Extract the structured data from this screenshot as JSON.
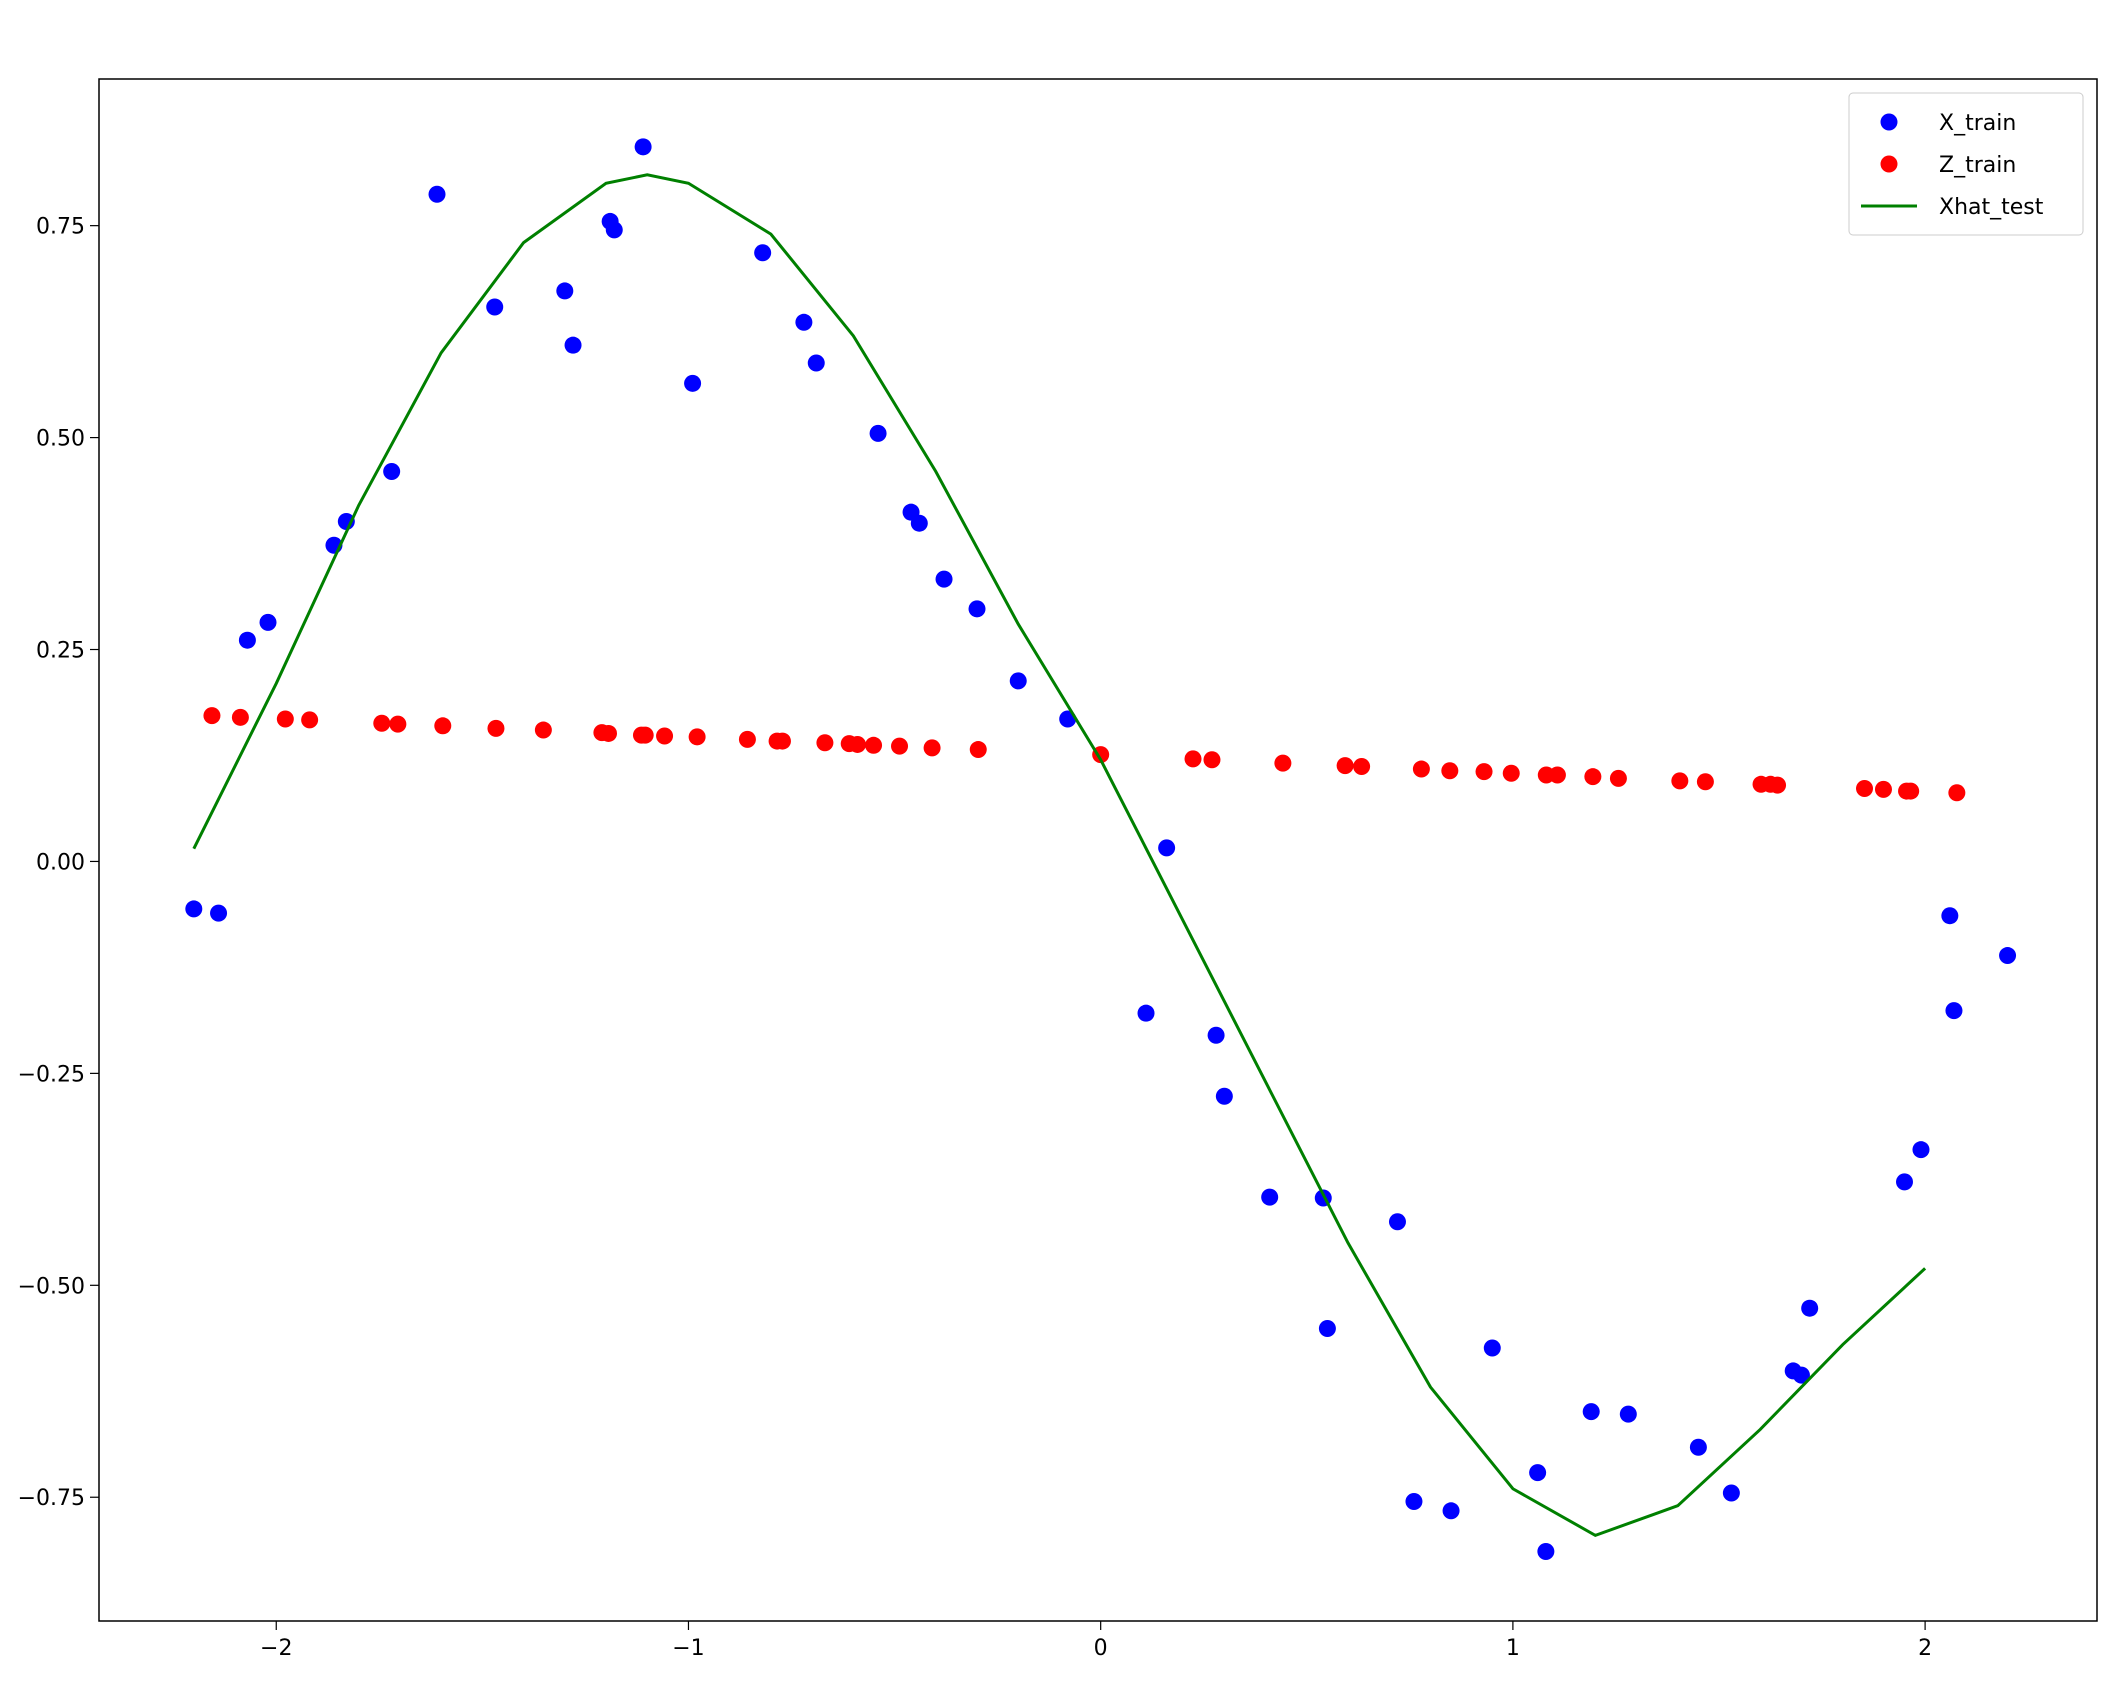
{
  "chart_data": {
    "type": "scatter",
    "xlim": [
      -2.43,
      2.417
    ],
    "ylim": [
      -0.896,
      0.923
    ],
    "xticks": [
      {
        "value": -2,
        "label": "−2"
      },
      {
        "value": -1,
        "label": "−1"
      },
      0,
      1,
      2
    ],
    "yticks": [
      {
        "value": -0.75,
        "label": "−0.75"
      },
      {
        "value": -0.5,
        "label": "−0.50"
      },
      {
        "value": -0.25,
        "label": "−0.25"
      },
      {
        "value": 0,
        "label": "0.00"
      },
      0.25,
      {
        "value": 0.5,
        "label": "0.50"
      },
      0.75
    ],
    "grid": false,
    "legend": "upper right",
    "series": [
      {
        "name": "X_train",
        "color": "#0000ff",
        "mode": "markers",
        "x": [
          -2.2,
          -2.14,
          -2.07,
          -2.02,
          -1.86,
          -1.83,
          -1.72,
          -1.61,
          -1.47,
          -1.3,
          -1.28,
          -1.19,
          -1.18,
          -1.11,
          -0.99,
          -0.82,
          -0.72,
          -0.69,
          -0.54,
          -0.46,
          -0.44,
          -0.38,
          -0.3,
          -0.2,
          -0.08,
          0.11,
          0.16,
          0.28,
          0.3,
          0.41,
          0.54,
          0.55,
          0.72,
          0.76,
          0.85,
          0.95,
          1.06,
          1.08,
          1.19,
          1.28,
          1.45,
          1.53,
          1.68,
          1.7,
          1.72,
          1.95,
          1.99,
          2.06,
          2.07,
          2.2
        ],
        "values": [
          -0.056,
          -0.061,
          0.261,
          0.282,
          0.373,
          0.401,
          0.46,
          0.787,
          0.654,
          0.673,
          0.609,
          0.755,
          0.745,
          0.843,
          0.564,
          0.718,
          0.636,
          0.588,
          0.505,
          0.412,
          0.399,
          0.333,
          0.298,
          0.213,
          0.168,
          -0.179,
          0.016,
          -0.205,
          -0.277,
          -0.396,
          -0.397,
          -0.551,
          -0.425,
          -0.755,
          -0.766,
          -0.574,
          -0.721,
          -0.814,
          -0.649,
          -0.652,
          -0.691,
          -0.745,
          -0.601,
          -0.606,
          -0.527,
          -0.378,
          -0.34,
          -0.064,
          -0.176,
          -0.111
        ]
      },
      {
        "name": "Z_train",
        "color": "#ff0000",
        "mode": "markers",
        "x": [
          -2.156,
          -2.087,
          -1.978,
          -1.919,
          -1.744,
          -1.705,
          -1.596,
          -1.467,
          -1.352,
          -1.21,
          -1.194,
          -1.114,
          -1.105,
          -1.058,
          -0.979,
          -0.857,
          -0.785,
          -0.772,
          -0.669,
          -0.61,
          -0.59,
          -0.551,
          -0.488,
          -0.409,
          -0.297,
          0,
          0.224,
          0.27,
          0.442,
          0.593,
          0.633,
          0.778,
          0.847,
          0.93,
          0.996,
          1.081,
          1.108,
          1.194,
          1.256,
          1.405,
          1.467,
          1.602,
          1.625,
          1.642,
          1.853,
          1.899,
          1.955,
          1.965,
          2.077
        ],
        "values": [
          0.172,
          0.17,
          0.168,
          0.167,
          0.163,
          0.162,
          0.16,
          0.157,
          0.155,
          0.152,
          0.151,
          0.149,
          0.149,
          0.148,
          0.147,
          0.144,
          0.142,
          0.142,
          0.14,
          0.139,
          0.138,
          0.137,
          0.136,
          0.134,
          0.132,
          0.126,
          0.121,
          0.12,
          0.116,
          0.113,
          0.112,
          0.109,
          0.107,
          0.106,
          0.104,
          0.102,
          0.102,
          0.1,
          0.098,
          0.095,
          0.094,
          0.091,
          0.091,
          0.09,
          0.086,
          0.085,
          0.083,
          0.083,
          0.081
        ]
      },
      {
        "name": "Xhat_test",
        "color": "#008000",
        "mode": "line",
        "x": [
          -2.2,
          -2.0,
          -1.8,
          -1.6,
          -1.4,
          -1.2,
          -1.1,
          -1.0,
          -0.8,
          -0.6,
          -0.4,
          -0.2,
          0.0,
          0.2,
          0.4,
          0.6,
          0.8,
          1.0,
          1.2,
          1.4,
          1.6,
          1.8,
          2.0
        ],
        "values": [
          0.015,
          0.21,
          0.42,
          0.6,
          0.73,
          0.8,
          0.81,
          0.8,
          0.74,
          0.62,
          0.46,
          0.28,
          0.12,
          -0.07,
          -0.26,
          -0.45,
          -0.62,
          -0.74,
          -0.795,
          -0.76,
          -0.67,
          -0.57,
          -0.48
        ]
      }
    ]
  }
}
